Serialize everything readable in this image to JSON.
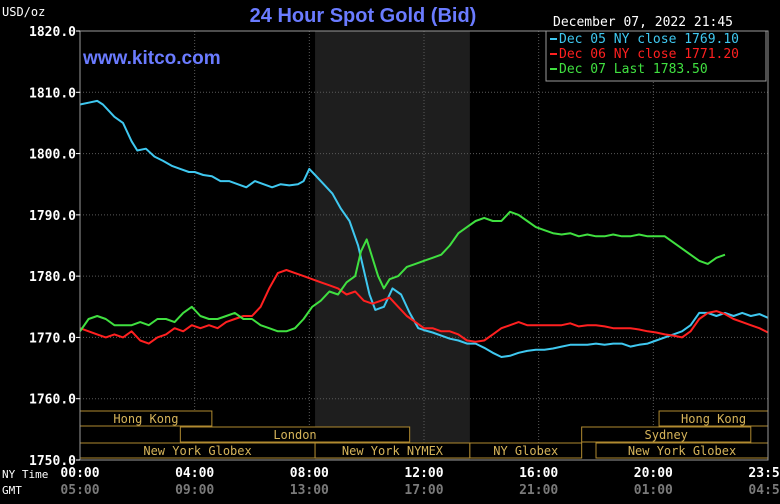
{
  "chart_data": {
    "type": "line",
    "title": "24 Hour Spot Gold (Bid)",
    "watermark": "www.kitco.com",
    "ylabel": "USD/oz",
    "timestamp": "December 07, 2022 21:45",
    "ylim": [
      1750,
      1820
    ],
    "yticks": [
      "1820.0",
      "1810.0",
      "1800.0",
      "1790.0",
      "1780.0",
      "1770.0",
      "1760.0",
      "1750.0"
    ],
    "xlim": [
      0,
      24
    ],
    "row_labels": {
      "ny": "NY Time",
      "gmt": "GMT"
    },
    "xticks_ny": [
      {
        "h": 0,
        "label": "00:00"
      },
      {
        "h": 4,
        "label": "04:00"
      },
      {
        "h": 8,
        "label": "08:00"
      },
      {
        "h": 12,
        "label": "12:00"
      },
      {
        "h": 16,
        "label": "16:00"
      },
      {
        "h": 20,
        "label": "20:00"
      },
      {
        "h": 24,
        "label": "23:59"
      }
    ],
    "xticks_gmt": [
      {
        "h": 0,
        "label": "05:00"
      },
      {
        "h": 4,
        "label": "09:00"
      },
      {
        "h": 8,
        "label": "13:00"
      },
      {
        "h": 12,
        "label": "17:00"
      },
      {
        "h": 16,
        "label": "21:00"
      },
      {
        "h": 20,
        "label": "01:00"
      },
      {
        "h": 24,
        "label": "04:59"
      }
    ],
    "shaded_session_hours": [
      8.2,
      13.6
    ],
    "grid": true,
    "legend_position": "top-right",
    "series": [
      {
        "name": "Dec 05 NY close 1769.10",
        "color": "#3fc8f0",
        "x": [
          0,
          0.3,
          0.6,
          0.8,
          1,
          1.2,
          1.5,
          1.8,
          2,
          2.3,
          2.6,
          2.9,
          3.2,
          3.5,
          3.8,
          4,
          4.3,
          4.6,
          4.9,
          5.2,
          5.5,
          5.8,
          6.1,
          6.4,
          6.7,
          7,
          7.3,
          7.6,
          7.8,
          8,
          8.2,
          8.5,
          8.8,
          9.1,
          9.4,
          9.7,
          9.9,
          10.1,
          10.3,
          10.6,
          10.9,
          11.2,
          11.5,
          11.8,
          12,
          12.3,
          12.6,
          12.9,
          13.2,
          13.5,
          13.8,
          14.1,
          14.4,
          14.7,
          15,
          15.3,
          15.6,
          15.9,
          16.2,
          16.5,
          16.8,
          17.1,
          17.4,
          17.7,
          18,
          18.3,
          18.6,
          18.9,
          19.2,
          19.5,
          19.8,
          20.1,
          20.4,
          20.7,
          21,
          21.3,
          21.6,
          21.9,
          22.2,
          22.5,
          22.8,
          23.1,
          23.4,
          23.7,
          24
        ],
        "y": [
          1808,
          1808.3,
          1808.6,
          1808,
          1807,
          1806,
          1805,
          1802,
          1800.5,
          1800.8,
          1799.5,
          1798.8,
          1798,
          1797.5,
          1797,
          1797,
          1796.5,
          1796.3,
          1795.5,
          1795.5,
          1795,
          1794.5,
          1795.5,
          1795,
          1794.5,
          1795,
          1794.8,
          1795,
          1795.5,
          1797.5,
          1796.5,
          1795,
          1793.5,
          1791,
          1789,
          1785,
          1781,
          1777,
          1774.5,
          1775,
          1778,
          1777,
          1774,
          1771.5,
          1771.2,
          1770.8,
          1770.3,
          1769.8,
          1769.5,
          1769,
          1769,
          1768.3,
          1767.5,
          1766.8,
          1767,
          1767.5,
          1767.8,
          1768,
          1768,
          1768.2,
          1768.5,
          1768.8,
          1768.8,
          1768.8,
          1769,
          1768.8,
          1769,
          1769,
          1768.5,
          1768.8,
          1769,
          1769.5,
          1770,
          1770.5,
          1771,
          1772,
          1774,
          1774,
          1773.5,
          1774,
          1773.5,
          1774,
          1773.5,
          1773.8,
          1773.2
        ]
      },
      {
        "name": "Dec 06 NY close 1771.20",
        "color": "#ff2020",
        "x": [
          0,
          0.3,
          0.6,
          0.9,
          1.2,
          1.5,
          1.8,
          2.1,
          2.4,
          2.7,
          3,
          3.3,
          3.6,
          3.9,
          4.2,
          4.5,
          4.8,
          5.1,
          5.4,
          5.7,
          6,
          6.3,
          6.6,
          6.9,
          7.2,
          7.5,
          7.8,
          8.1,
          8.4,
          8.7,
          9,
          9.3,
          9.6,
          9.9,
          10.2,
          10.5,
          10.8,
          11.1,
          11.4,
          11.7,
          12,
          12.3,
          12.6,
          12.9,
          13.2,
          13.5,
          13.8,
          14.1,
          14.4,
          14.7,
          15,
          15.3,
          15.6,
          15.9,
          16.2,
          16.5,
          16.8,
          17.1,
          17.4,
          17.7,
          18,
          18.3,
          18.6,
          18.9,
          19.2,
          19.5,
          19.8,
          20.1,
          20.4,
          20.7,
          21,
          21.3,
          21.6,
          21.9,
          22.2,
          22.5,
          22.8,
          23.1,
          23.4,
          23.7,
          24
        ],
        "y": [
          1771.5,
          1771,
          1770.5,
          1770,
          1770.5,
          1770,
          1771,
          1769.5,
          1769,
          1770,
          1770.5,
          1771.5,
          1771,
          1772,
          1771.5,
          1772,
          1771.5,
          1772.5,
          1773,
          1773.5,
          1773.5,
          1775,
          1778,
          1780.5,
          1781,
          1780.5,
          1780,
          1779.5,
          1779,
          1778.5,
          1778,
          1777,
          1777.5,
          1776,
          1775.5,
          1776,
          1776.5,
          1775,
          1773.5,
          1772.5,
          1771.5,
          1771.5,
          1771,
          1771,
          1770.5,
          1769.5,
          1769.3,
          1769.5,
          1770.5,
          1771.5,
          1772,
          1772.5,
          1772,
          1772,
          1772,
          1772,
          1772,
          1772.3,
          1771.8,
          1772,
          1772,
          1771.8,
          1771.5,
          1771.5,
          1771.5,
          1771.3,
          1771,
          1770.8,
          1770.5,
          1770.3,
          1770,
          1771,
          1773,
          1774,
          1774.3,
          1773.8,
          1773,
          1772.5,
          1772,
          1771.5,
          1770.8
        ]
      },
      {
        "name": "Dec 07 Last 1783.50",
        "color": "#40e040",
        "x": [
          0,
          0.3,
          0.6,
          0.9,
          1.2,
          1.5,
          1.8,
          2.1,
          2.4,
          2.7,
          3,
          3.3,
          3.6,
          3.9,
          4.2,
          4.5,
          4.8,
          5.1,
          5.4,
          5.7,
          6,
          6.3,
          6.6,
          6.9,
          7.2,
          7.5,
          7.8,
          8.1,
          8.4,
          8.7,
          9,
          9.3,
          9.6,
          9.8,
          10,
          10.2,
          10.4,
          10.6,
          10.8,
          11.1,
          11.4,
          11.7,
          12,
          12.3,
          12.6,
          12.9,
          13.2,
          13.5,
          13.8,
          14.1,
          14.4,
          14.7,
          15,
          15.3,
          15.6,
          15.9,
          16.2,
          16.5,
          16.8,
          17.1,
          17.4,
          17.7,
          18,
          18.3,
          18.6,
          18.9,
          19.2,
          19.5,
          19.8,
          20.1,
          20.4,
          20.7,
          21,
          21.3,
          21.6,
          21.9,
          22.2,
          22.5
        ],
        "y": [
          1771,
          1773,
          1773.5,
          1773,
          1772,
          1772,
          1772,
          1772.5,
          1772,
          1773,
          1773,
          1772.5,
          1774,
          1775,
          1773.5,
          1773,
          1773,
          1773.5,
          1774,
          1773,
          1773,
          1772,
          1771.5,
          1771,
          1771,
          1771.5,
          1773,
          1775,
          1776,
          1777.5,
          1777,
          1779,
          1780,
          1784,
          1786,
          1783,
          1780,
          1778,
          1779.5,
          1780,
          1781.5,
          1782,
          1782.5,
          1783,
          1783.5,
          1785,
          1787,
          1788,
          1789,
          1789.5,
          1789,
          1789,
          1790.5,
          1790,
          1789,
          1788,
          1787.5,
          1787,
          1786.8,
          1787,
          1786.5,
          1786.8,
          1786.5,
          1786.5,
          1786.8,
          1786.5,
          1786.5,
          1786.8,
          1786.5,
          1786.5,
          1786.5,
          1785.5,
          1784.5,
          1783.5,
          1782.5,
          1782,
          1783,
          1783.5
        ]
      }
    ],
    "sessions": [
      {
        "label": "Hong Kong",
        "start": 0,
        "end": 4.6,
        "row": 0
      },
      {
        "label": "London",
        "start": 3.5,
        "end": 11.5,
        "row": 1
      },
      {
        "label": "New York Globex",
        "start": 0,
        "end": 8.2,
        "row": 2
      },
      {
        "label": "New York NYMEX",
        "start": 8.2,
        "end": 13.6,
        "row": 2
      },
      {
        "label": "NY Globex",
        "start": 13.6,
        "end": 17.5,
        "row": 2
      },
      {
        "label": "Hong Kong",
        "start": 20.2,
        "end": 24,
        "row": 0
      },
      {
        "label": "Sydney",
        "start": 17.5,
        "end": 23.4,
        "row": 1
      },
      {
        "label": "New York Globex",
        "start": 18.0,
        "end": 24,
        "row": 2
      }
    ]
  }
}
